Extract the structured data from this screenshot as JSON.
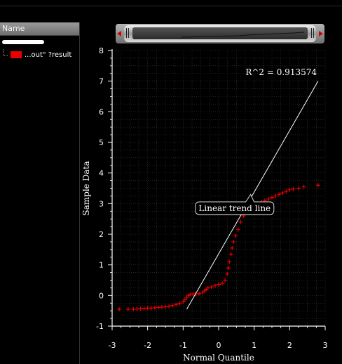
{
  "sidebar": {
    "header": "Name",
    "items": [
      {
        "label": "...out\" ?result",
        "color": "#e60000"
      }
    ]
  },
  "colors": {
    "background": "#000000",
    "points": "#e60000",
    "trend_line": "#ffffff",
    "grid": "#3a3a3a"
  },
  "chart_data": {
    "type": "scatter",
    "title": "",
    "xlabel": "Normal Quantile",
    "ylabel": "Sample Data",
    "xlim": [
      -3,
      3
    ],
    "ylim": [
      -1,
      8
    ],
    "x_ticks": [
      -3,
      -2,
      -1,
      0,
      1,
      2,
      3
    ],
    "y_ticks": [
      -1,
      0,
      1,
      2,
      3,
      4,
      5,
      6,
      7,
      8
    ],
    "grid": true,
    "marker": "plus",
    "annotations": {
      "r_squared": "R^2 = 0.913574",
      "trend_label": "Linear trend line"
    },
    "trend_line": {
      "x": [
        -0.9,
        2.8
      ],
      "y": [
        -0.45,
        7.0
      ]
    },
    "series": [
      {
        "values": [
          [
            -2.8,
            -0.45
          ],
          [
            -2.55,
            -0.45
          ],
          [
            -2.4,
            -0.45
          ],
          [
            -2.3,
            -0.44
          ],
          [
            -2.2,
            -0.43
          ],
          [
            -2.1,
            -0.42
          ],
          [
            -2.0,
            -0.41
          ],
          [
            -1.9,
            -0.41
          ],
          [
            -1.8,
            -0.4
          ],
          [
            -1.7,
            -0.39
          ],
          [
            -1.6,
            -0.38
          ],
          [
            -1.5,
            -0.37
          ],
          [
            -1.4,
            -0.35
          ],
          [
            -1.3,
            -0.33
          ],
          [
            -1.2,
            -0.3
          ],
          [
            -1.1,
            -0.26
          ],
          [
            -1.0,
            -0.2
          ],
          [
            -0.95,
            -0.14
          ],
          [
            -0.9,
            -0.06
          ],
          [
            -0.85,
            0.0
          ],
          [
            -0.8,
            0.04
          ],
          [
            -0.72,
            0.05
          ],
          [
            -0.65,
            0.05
          ],
          [
            -0.55,
            0.06
          ],
          [
            -0.45,
            0.1
          ],
          [
            -0.4,
            0.15
          ],
          [
            -0.35,
            0.2
          ],
          [
            -0.3,
            0.25
          ],
          [
            -0.2,
            0.28
          ],
          [
            -0.1,
            0.32
          ],
          [
            0.0,
            0.36
          ],
          [
            0.1,
            0.4
          ],
          [
            0.18,
            0.5
          ],
          [
            0.24,
            0.7
          ],
          [
            0.27,
            0.9
          ],
          [
            0.3,
            1.1
          ],
          [
            0.35,
            1.35
          ],
          [
            0.38,
            1.55
          ],
          [
            0.42,
            1.75
          ],
          [
            0.48,
            1.95
          ],
          [
            0.55,
            2.15
          ],
          [
            0.62,
            2.4
          ],
          [
            0.7,
            2.6
          ],
          [
            0.75,
            2.75
          ],
          [
            0.8,
            2.85
          ],
          [
            0.9,
            2.9
          ],
          [
            1.0,
            2.95
          ],
          [
            1.1,
            3.0
          ],
          [
            1.2,
            3.05
          ],
          [
            1.3,
            3.1
          ],
          [
            1.4,
            3.15
          ],
          [
            1.5,
            3.2
          ],
          [
            1.6,
            3.25
          ],
          [
            1.7,
            3.3
          ],
          [
            1.8,
            3.35
          ],
          [
            1.9,
            3.4
          ],
          [
            2.0,
            3.45
          ],
          [
            2.1,
            3.48
          ],
          [
            2.25,
            3.5
          ],
          [
            2.4,
            3.55
          ],
          [
            2.8,
            3.6
          ]
        ]
      }
    ]
  }
}
